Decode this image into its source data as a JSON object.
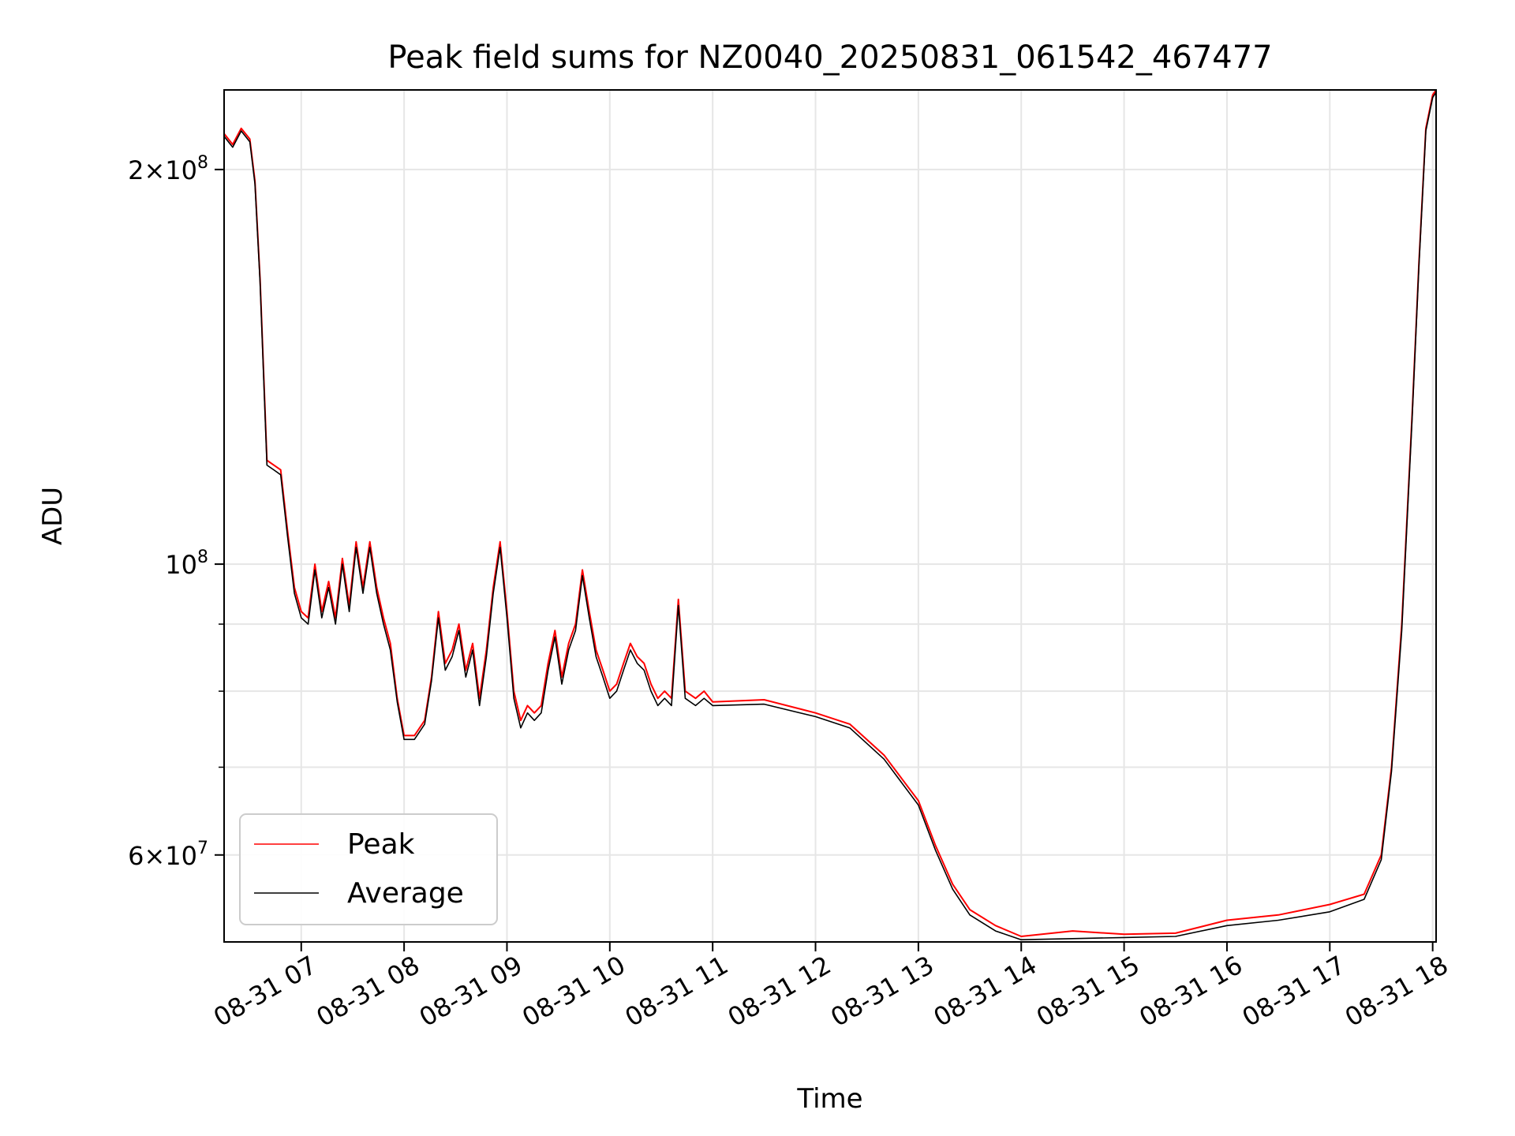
{
  "chart_data": {
    "type": "line",
    "title": "Peak field sums for NZ0040_20250831_061542_467477",
    "xlabel": "Time",
    "ylabel": "ADU",
    "yscale": "log",
    "grid": true,
    "legend_position": "lower-left",
    "xlim": [
      "2025-08-31 06:15",
      "2025-08-31 18:02"
    ],
    "ylim": [
      51500000,
      230000000
    ],
    "x_ticks": [
      {
        "time": "2025-08-31 07:00",
        "label": "08-31 07"
      },
      {
        "time": "2025-08-31 08:00",
        "label": "08-31 08"
      },
      {
        "time": "2025-08-31 09:00",
        "label": "08-31 09"
      },
      {
        "time": "2025-08-31 10:00",
        "label": "08-31 10"
      },
      {
        "time": "2025-08-31 11:00",
        "label": "08-31 11"
      },
      {
        "time": "2025-08-31 12:00",
        "label": "08-31 12"
      },
      {
        "time": "2025-08-31 13:00",
        "label": "08-31 13"
      },
      {
        "time": "2025-08-31 14:00",
        "label": "08-31 14"
      },
      {
        "time": "2025-08-31 15:00",
        "label": "08-31 15"
      },
      {
        "time": "2025-08-31 16:00",
        "label": "08-31 16"
      },
      {
        "time": "2025-08-31 17:00",
        "label": "08-31 17"
      },
      {
        "time": "2025-08-31 18:00",
        "label": "08-31 18"
      }
    ],
    "y_ticks_major": [
      {
        "value": 60000000,
        "mant": "6",
        "exp": "7"
      },
      {
        "value": 100000000,
        "mant": "",
        "exp": "8"
      },
      {
        "value": 200000000,
        "mant": "2",
        "exp": "8"
      }
    ],
    "y_ticks_minor": [
      70000000,
      80000000,
      90000000
    ],
    "series": [
      {
        "name": "Peak",
        "color": "#ff0000",
        "points": [
          [
            "2025-08-31 06:15",
            213000000
          ],
          [
            "2025-08-31 06:20",
            209000000
          ],
          [
            "2025-08-31 06:25",
            215000000
          ],
          [
            "2025-08-31 06:30",
            211000000
          ],
          [
            "2025-08-31 06:33",
            196000000
          ],
          [
            "2025-08-31 06:36",
            165000000
          ],
          [
            "2025-08-31 06:40",
            120000000
          ],
          [
            "2025-08-31 06:44",
            119000000
          ],
          [
            "2025-08-31 06:48",
            118000000
          ],
          [
            "2025-08-31 06:52",
            106000000
          ],
          [
            "2025-08-31 06:56",
            96000000
          ],
          [
            "2025-08-31 07:00",
            92000000
          ],
          [
            "2025-08-31 07:04",
            91000000
          ],
          [
            "2025-08-31 07:08",
            100000000
          ],
          [
            "2025-08-31 07:12",
            92000000
          ],
          [
            "2025-08-31 07:16",
            97000000
          ],
          [
            "2025-08-31 07:20",
            91000000
          ],
          [
            "2025-08-31 07:24",
            101000000
          ],
          [
            "2025-08-31 07:28",
            93000000
          ],
          [
            "2025-08-31 07:32",
            104000000
          ],
          [
            "2025-08-31 07:36",
            96000000
          ],
          [
            "2025-08-31 07:40",
            104000000
          ],
          [
            "2025-08-31 07:44",
            96000000
          ],
          [
            "2025-08-31 07:48",
            91000000
          ],
          [
            "2025-08-31 07:52",
            87000000
          ],
          [
            "2025-08-31 07:56",
            79000000
          ],
          [
            "2025-08-31 08:00",
            74000000
          ],
          [
            "2025-08-31 08:06",
            74000000
          ],
          [
            "2025-08-31 08:12",
            76000000
          ],
          [
            "2025-08-31 08:16",
            82000000
          ],
          [
            "2025-08-31 08:20",
            92000000
          ],
          [
            "2025-08-31 08:24",
            84000000
          ],
          [
            "2025-08-31 08:28",
            86000000
          ],
          [
            "2025-08-31 08:32",
            90000000
          ],
          [
            "2025-08-31 08:36",
            83000000
          ],
          [
            "2025-08-31 08:40",
            87000000
          ],
          [
            "2025-08-31 08:44",
            79000000
          ],
          [
            "2025-08-31 08:48",
            86000000
          ],
          [
            "2025-08-31 08:52",
            96000000
          ],
          [
            "2025-08-31 08:56",
            104000000
          ],
          [
            "2025-08-31 09:00",
            92000000
          ],
          [
            "2025-08-31 09:04",
            80000000
          ],
          [
            "2025-08-31 09:08",
            76000000
          ],
          [
            "2025-08-31 09:12",
            78000000
          ],
          [
            "2025-08-31 09:16",
            77000000
          ],
          [
            "2025-08-31 09:20",
            78000000
          ],
          [
            "2025-08-31 09:24",
            84000000
          ],
          [
            "2025-08-31 09:28",
            89000000
          ],
          [
            "2025-08-31 09:32",
            82000000
          ],
          [
            "2025-08-31 09:36",
            87000000
          ],
          [
            "2025-08-31 09:40",
            90000000
          ],
          [
            "2025-08-31 09:44",
            99000000
          ],
          [
            "2025-08-31 09:48",
            92000000
          ],
          [
            "2025-08-31 09:52",
            86000000
          ],
          [
            "2025-08-31 09:56",
            83000000
          ],
          [
            "2025-08-31 10:00",
            80000000
          ],
          [
            "2025-08-31 10:04",
            81000000
          ],
          [
            "2025-08-31 10:08",
            84000000
          ],
          [
            "2025-08-31 10:12",
            87000000
          ],
          [
            "2025-08-31 10:16",
            85000000
          ],
          [
            "2025-08-31 10:20",
            84000000
          ],
          [
            "2025-08-31 10:24",
            81000000
          ],
          [
            "2025-08-31 10:28",
            79000000
          ],
          [
            "2025-08-31 10:32",
            80000000
          ],
          [
            "2025-08-31 10:36",
            79000000
          ],
          [
            "2025-08-31 10:40",
            94000000
          ],
          [
            "2025-08-31 10:44",
            80000000
          ],
          [
            "2025-08-31 10:50",
            79000000
          ],
          [
            "2025-08-31 10:55",
            80000000
          ],
          [
            "2025-08-31 11:00",
            78500000
          ],
          [
            "2025-08-31 11:30",
            78800000
          ],
          [
            "2025-08-31 12:00",
            77000000
          ],
          [
            "2025-08-31 12:20",
            75500000
          ],
          [
            "2025-08-31 12:40",
            71500000
          ],
          [
            "2025-08-31 13:00",
            66000000
          ],
          [
            "2025-08-31 13:10",
            61000000
          ],
          [
            "2025-08-31 13:20",
            57000000
          ],
          [
            "2025-08-31 13:30",
            54500000
          ],
          [
            "2025-08-31 13:45",
            53000000
          ],
          [
            "2025-08-31 14:00",
            52000000
          ],
          [
            "2025-08-31 14:30",
            52500000
          ],
          [
            "2025-08-31 15:00",
            52200000
          ],
          [
            "2025-08-31 15:30",
            52300000
          ],
          [
            "2025-08-31 16:00",
            53500000
          ],
          [
            "2025-08-31 16:30",
            54000000
          ],
          [
            "2025-08-31 17:00",
            55000000
          ],
          [
            "2025-08-31 17:20",
            56000000
          ],
          [
            "2025-08-31 17:30",
            60000000
          ],
          [
            "2025-08-31 17:36",
            70000000
          ],
          [
            "2025-08-31 17:42",
            90000000
          ],
          [
            "2025-08-31 17:48",
            130000000
          ],
          [
            "2025-08-31 17:52",
            170000000
          ],
          [
            "2025-08-31 17:56",
            215000000
          ],
          [
            "2025-08-31 18:00",
            228000000
          ],
          [
            "2025-08-31 18:02",
            230000000
          ]
        ]
      },
      {
        "name": "Average",
        "color": "#000000",
        "points": [
          [
            "2025-08-31 06:15",
            212000000
          ],
          [
            "2025-08-31 06:20",
            208000000
          ],
          [
            "2025-08-31 06:25",
            214000000
          ],
          [
            "2025-08-31 06:30",
            210000000
          ],
          [
            "2025-08-31 06:33",
            195000000
          ],
          [
            "2025-08-31 06:36",
            164000000
          ],
          [
            "2025-08-31 06:40",
            119000000
          ],
          [
            "2025-08-31 06:44",
            118000000
          ],
          [
            "2025-08-31 06:48",
            117000000
          ],
          [
            "2025-08-31 06:52",
            105000000
          ],
          [
            "2025-08-31 06:56",
            95000000
          ],
          [
            "2025-08-31 07:00",
            91000000
          ],
          [
            "2025-08-31 07:04",
            90000000
          ],
          [
            "2025-08-31 07:08",
            99000000
          ],
          [
            "2025-08-31 07:12",
            91000000
          ],
          [
            "2025-08-31 07:16",
            96000000
          ],
          [
            "2025-08-31 07:20",
            90000000
          ],
          [
            "2025-08-31 07:24",
            100000000
          ],
          [
            "2025-08-31 07:28",
            92000000
          ],
          [
            "2025-08-31 07:32",
            103000000
          ],
          [
            "2025-08-31 07:36",
            95000000
          ],
          [
            "2025-08-31 07:40",
            103000000
          ],
          [
            "2025-08-31 07:44",
            95000000
          ],
          [
            "2025-08-31 07:48",
            90000000
          ],
          [
            "2025-08-31 07:52",
            86000000
          ],
          [
            "2025-08-31 07:56",
            78500000
          ],
          [
            "2025-08-31 08:00",
            73500000
          ],
          [
            "2025-08-31 08:06",
            73500000
          ],
          [
            "2025-08-31 08:12",
            75500000
          ],
          [
            "2025-08-31 08:16",
            81500000
          ],
          [
            "2025-08-31 08:20",
            91000000
          ],
          [
            "2025-08-31 08:24",
            83000000
          ],
          [
            "2025-08-31 08:28",
            85000000
          ],
          [
            "2025-08-31 08:32",
            89000000
          ],
          [
            "2025-08-31 08:36",
            82000000
          ],
          [
            "2025-08-31 08:40",
            86000000
          ],
          [
            "2025-08-31 08:44",
            78000000
          ],
          [
            "2025-08-31 08:48",
            85000000
          ],
          [
            "2025-08-31 08:52",
            95000000
          ],
          [
            "2025-08-31 08:56",
            103000000
          ],
          [
            "2025-08-31 09:00",
            91000000
          ],
          [
            "2025-08-31 09:04",
            79000000
          ],
          [
            "2025-08-31 09:08",
            75000000
          ],
          [
            "2025-08-31 09:12",
            77000000
          ],
          [
            "2025-08-31 09:16",
            76000000
          ],
          [
            "2025-08-31 09:20",
            77000000
          ],
          [
            "2025-08-31 09:24",
            83000000
          ],
          [
            "2025-08-31 09:28",
            88000000
          ],
          [
            "2025-08-31 09:32",
            81000000
          ],
          [
            "2025-08-31 09:36",
            86000000
          ],
          [
            "2025-08-31 09:40",
            89000000
          ],
          [
            "2025-08-31 09:44",
            98000000
          ],
          [
            "2025-08-31 09:48",
            91000000
          ],
          [
            "2025-08-31 09:52",
            85000000
          ],
          [
            "2025-08-31 09:56",
            82000000
          ],
          [
            "2025-08-31 10:00",
            79000000
          ],
          [
            "2025-08-31 10:04",
            80000000
          ],
          [
            "2025-08-31 10:08",
            83000000
          ],
          [
            "2025-08-31 10:12",
            86000000
          ],
          [
            "2025-08-31 10:16",
            84000000
          ],
          [
            "2025-08-31 10:20",
            83000000
          ],
          [
            "2025-08-31 10:24",
            80000000
          ],
          [
            "2025-08-31 10:28",
            78000000
          ],
          [
            "2025-08-31 10:32",
            79000000
          ],
          [
            "2025-08-31 10:36",
            78000000
          ],
          [
            "2025-08-31 10:40",
            93000000
          ],
          [
            "2025-08-31 10:44",
            79000000
          ],
          [
            "2025-08-31 10:50",
            78000000
          ],
          [
            "2025-08-31 10:55",
            79000000
          ],
          [
            "2025-08-31 11:00",
            78000000
          ],
          [
            "2025-08-31 11:30",
            78200000
          ],
          [
            "2025-08-31 12:00",
            76500000
          ],
          [
            "2025-08-31 12:20",
            75000000
          ],
          [
            "2025-08-31 12:40",
            71000000
          ],
          [
            "2025-08-31 13:00",
            65500000
          ],
          [
            "2025-08-31 13:10",
            60500000
          ],
          [
            "2025-08-31 13:20",
            56500000
          ],
          [
            "2025-08-31 13:30",
            54000000
          ],
          [
            "2025-08-31 13:45",
            52500000
          ],
          [
            "2025-08-31 14:00",
            51700000
          ],
          [
            "2025-08-31 14:30",
            51800000
          ],
          [
            "2025-08-31 15:00",
            51900000
          ],
          [
            "2025-08-31 15:30",
            52000000
          ],
          [
            "2025-08-31 16:00",
            53000000
          ],
          [
            "2025-08-31 16:30",
            53500000
          ],
          [
            "2025-08-31 17:00",
            54300000
          ],
          [
            "2025-08-31 17:20",
            55500000
          ],
          [
            "2025-08-31 17:30",
            59500000
          ],
          [
            "2025-08-31 17:36",
            69500000
          ],
          [
            "2025-08-31 17:42",
            89000000
          ],
          [
            "2025-08-31 17:48",
            129000000
          ],
          [
            "2025-08-31 17:52",
            169000000
          ],
          [
            "2025-08-31 17:56",
            214000000
          ],
          [
            "2025-08-31 18:00",
            227000000
          ],
          [
            "2025-08-31 18:02",
            229000000
          ]
        ]
      }
    ]
  }
}
